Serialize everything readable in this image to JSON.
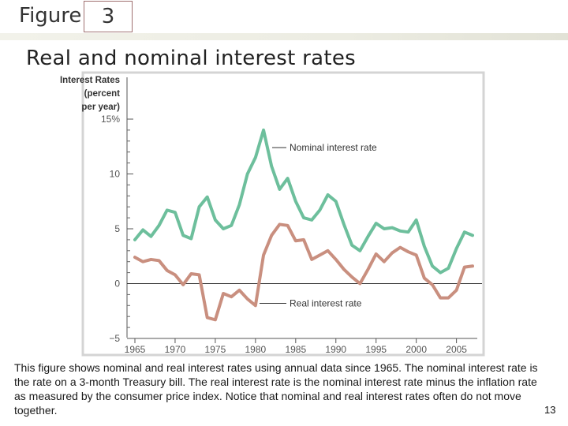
{
  "slide": {
    "figure_word": "Figure",
    "figure_number": "3",
    "title": "Real and nominal interest rates",
    "caption": "This figure shows nominal and real interest rates using annual data since 1965. The nominal interest rate is the rate on a 3-month Treasury bill. The real interest rate is the nominal interest rate minus the inflation rate as measured by the consumer price index. Notice that nominal and real interest rates often do not move together.",
    "page_number": "13"
  },
  "colors": {
    "nominal": "#6dbf9c",
    "real": "#c98f7f",
    "frame": "#d4d4d4",
    "axis_text": "#555555"
  },
  "chart_data": {
    "type": "line",
    "ylabel_lines": [
      "Interest Rates",
      "(percent",
      "per year)"
    ],
    "ylim": [
      -5,
      15
    ],
    "yticks": [
      -5,
      0,
      5,
      10,
      15
    ],
    "ytick_labels": [
      "−5",
      "0",
      "5",
      "10",
      "15%"
    ],
    "xlim": [
      1965,
      2007
    ],
    "xticks": [
      1965,
      1970,
      1975,
      1980,
      1985,
      1990,
      1995,
      2000,
      2005
    ],
    "xtick_labels": [
      "1965",
      "1970",
      "1975",
      "1980",
      "1985",
      "1990",
      "1995",
      "2000",
      "2005"
    ],
    "x": [
      1965,
      1966,
      1967,
      1968,
      1969,
      1970,
      1971,
      1972,
      1973,
      1974,
      1975,
      1976,
      1977,
      1978,
      1979,
      1980,
      1981,
      1982,
      1983,
      1984,
      1985,
      1986,
      1987,
      1988,
      1989,
      1990,
      1991,
      1992,
      1993,
      1994,
      1995,
      1996,
      1997,
      1998,
      1999,
      2000,
      2001,
      2002,
      2003,
      2004,
      2005,
      2006,
      2007
    ],
    "series": [
      {
        "name": "Nominal interest rate",
        "values": [
          4.0,
          4.9,
          4.3,
          5.3,
          6.7,
          6.5,
          4.4,
          4.1,
          7.0,
          7.9,
          5.8,
          5.0,
          5.3,
          7.2,
          10.0,
          11.5,
          14.0,
          10.7,
          8.6,
          9.6,
          7.5,
          6.0,
          5.8,
          6.7,
          8.1,
          7.5,
          5.4,
          3.5,
          3.0,
          4.3,
          5.5,
          5.0,
          5.1,
          4.8,
          4.7,
          5.8,
          3.4,
          1.6,
          1.0,
          1.4,
          3.2,
          4.7,
          4.4
        ]
      },
      {
        "name": "Real interest rate",
        "values": [
          2.4,
          2.0,
          2.2,
          2.1,
          1.2,
          0.8,
          -0.1,
          0.9,
          0.8,
          -3.1,
          -3.3,
          -0.9,
          -1.2,
          -0.6,
          -1.4,
          -2.0,
          2.6,
          4.4,
          5.4,
          5.3,
          3.9,
          4.0,
          2.2,
          2.6,
          3.0,
          2.2,
          1.3,
          0.6,
          0.0,
          1.3,
          2.7,
          2.0,
          2.8,
          3.3,
          2.9,
          2.6,
          0.5,
          -0.1,
          -1.3,
          -1.3,
          -0.6,
          1.5,
          1.6
        ]
      }
    ],
    "annotations": [
      {
        "text": "Nominal interest rate",
        "series": 0
      },
      {
        "text": "Real interest rate",
        "series": 1
      }
    ],
    "grid": false,
    "zero_line": true
  }
}
